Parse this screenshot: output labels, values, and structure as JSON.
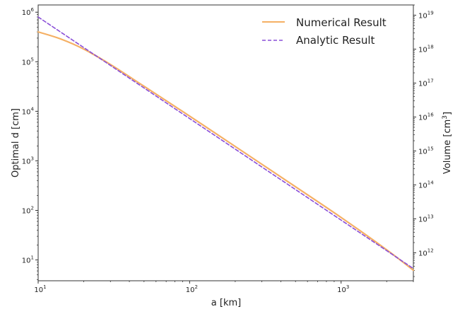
{
  "chart_data": {
    "type": "line",
    "xlabel": "a [km]",
    "ylabel_left": "Optimal d [cm]",
    "ylabel_right": "Volume [cm",
    "ylabel_right_sup": "3",
    "ylabel_right_close": "]",
    "x_scale": "log",
    "y_scale_left": "log",
    "y_scale_right": "log",
    "xlim": [
      10,
      3000
    ],
    "ylim_left": [
      3.8,
      1400000
    ],
    "ylim_right": [
      150000000000.0,
      2e+19
    ],
    "grid": false,
    "legend_position": "top-right",
    "x_ticks": [
      {
        "value": 10,
        "base": "10",
        "exp": "1"
      },
      {
        "value": 100,
        "base": "10",
        "exp": "2"
      },
      {
        "value": 1000,
        "base": "10",
        "exp": "3"
      }
    ],
    "y_ticks_left": [
      {
        "value": 10,
        "base": "10",
        "exp": "1"
      },
      {
        "value": 100,
        "base": "10",
        "exp": "2"
      },
      {
        "value": 1000,
        "base": "10",
        "exp": "3"
      },
      {
        "value": 10000,
        "base": "10",
        "exp": "4"
      },
      {
        "value": 100000,
        "base": "10",
        "exp": "5"
      },
      {
        "value": 1000000,
        "base": "10",
        "exp": "6"
      }
    ],
    "y_ticks_right": [
      {
        "value": 1000000000000.0,
        "base": "10",
        "exp": "12"
      },
      {
        "value": 10000000000000.0,
        "base": "10",
        "exp": "13"
      },
      {
        "value": 100000000000000.0,
        "base": "10",
        "exp": "14"
      },
      {
        "value": 1000000000000000.0,
        "base": "10",
        "exp": "15"
      },
      {
        "value": 1e+16,
        "base": "10",
        "exp": "16"
      },
      {
        "value": 1e+17,
        "base": "10",
        "exp": "17"
      },
      {
        "value": 1e+18,
        "base": "10",
        "exp": "18"
      },
      {
        "value": 1e+19,
        "base": "10",
        "exp": "19"
      }
    ],
    "series": [
      {
        "name": "Numerical Result",
        "color": "#f5b064",
        "style": "solid",
        "x": [
          10,
          14,
          20,
          30,
          50,
          100,
          200,
          500,
          1000,
          2000,
          3000
        ],
        "y": [
          400000,
          290000,
          180000,
          88000,
          32000,
          8000,
          1950,
          300,
          72,
          16,
          6.2
        ]
      },
      {
        "name": "Analytic Result",
        "color": "#8a4fd8",
        "style": "dashed",
        "x": [
          10,
          3000
        ],
        "y": [
          800000,
          6.7
        ]
      }
    ]
  }
}
